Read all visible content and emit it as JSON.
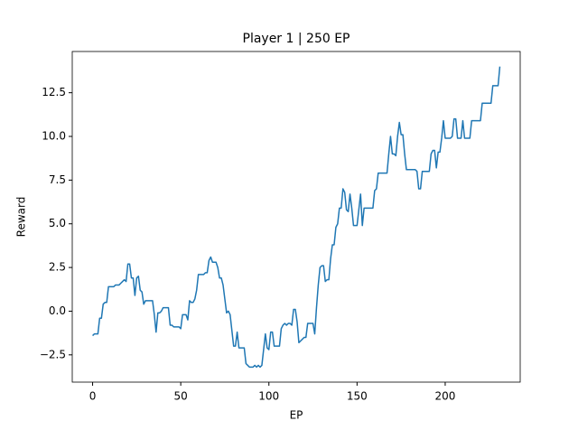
{
  "chart_data": {
    "type": "line",
    "title": "Player 1 | 250 EP",
    "xlabel": "EP",
    "ylabel": "Reward",
    "x": [
      0,
      1,
      2,
      3,
      4,
      5,
      6,
      7,
      8,
      9,
      10,
      11,
      12,
      13,
      14,
      15,
      16,
      17,
      18,
      19,
      20,
      21,
      22,
      23,
      24,
      25,
      26,
      27,
      28,
      29,
      30,
      31,
      32,
      33,
      34,
      35,
      36,
      37,
      38,
      39,
      40,
      41,
      42,
      43,
      44,
      45,
      46,
      47,
      48,
      49,
      50,
      51,
      52,
      53,
      54,
      55,
      56,
      57,
      58,
      59,
      60,
      61,
      62,
      63,
      64,
      65,
      66,
      67,
      68,
      69,
      70,
      71,
      72,
      73,
      74,
      75,
      76,
      77,
      78,
      79,
      80,
      81,
      82,
      83,
      84,
      85,
      86,
      87,
      88,
      89,
      90,
      91,
      92,
      93,
      94,
      95,
      96,
      97,
      98,
      99,
      100,
      101,
      102,
      103,
      104,
      105,
      106,
      107,
      108,
      109,
      110,
      111,
      112,
      113,
      114,
      115,
      116,
      117,
      118,
      119,
      120,
      121,
      122,
      123,
      124,
      125,
      126,
      127,
      128,
      129,
      130,
      131,
      132,
      133,
      134,
      135,
      136,
      137,
      138,
      139,
      140,
      141,
      142,
      143,
      144,
      145,
      146,
      147,
      148,
      149,
      150,
      151,
      152,
      153,
      154,
      155,
      156,
      157,
      158,
      159,
      160,
      161,
      162,
      163,
      164,
      165,
      166,
      167,
      168,
      169,
      170,
      171,
      172,
      173,
      174,
      175,
      176,
      177,
      178,
      179,
      180,
      181,
      182,
      183,
      184,
      185,
      186,
      187,
      188,
      189,
      190,
      191,
      192,
      193,
      194,
      195,
      196,
      197,
      198,
      199,
      200,
      201,
      202,
      203,
      204,
      205,
      206,
      207,
      208,
      209,
      210,
      211,
      212,
      213,
      214,
      215,
      216,
      217,
      218,
      219,
      220,
      221,
      222,
      223,
      224,
      225,
      226,
      227,
      228,
      229,
      230,
      231
    ],
    "series": [
      {
        "color": "#1f77b4",
        "values": [
          -1.4,
          -1.3,
          -1.3,
          -1.3,
          -0.4,
          -0.4,
          0.4,
          0.5,
          0.5,
          1.4,
          1.4,
          1.4,
          1.4,
          1.5,
          1.5,
          1.5,
          1.6,
          1.7,
          1.8,
          1.7,
          2.7,
          2.7,
          1.9,
          1.9,
          0.9,
          1.9,
          2.0,
          1.2,
          1.1,
          0.4,
          0.6,
          0.6,
          0.6,
          0.6,
          0.6,
          -0.2,
          -1.2,
          -0.1,
          -0.1,
          0.0,
          0.2,
          0.2,
          0.2,
          0.2,
          -0.8,
          -0.8,
          -0.9,
          -0.9,
          -0.9,
          -0.9,
          -1.0,
          -0.2,
          -0.2,
          -0.2,
          -0.5,
          0.6,
          0.5,
          0.5,
          0.7,
          1.2,
          2.1,
          2.1,
          2.1,
          2.1,
          2.2,
          2.2,
          2.9,
          3.1,
          2.8,
          2.8,
          2.8,
          2.5,
          1.9,
          1.9,
          1.5,
          0.7,
          -0.1,
          0.0,
          -0.2,
          -1.1,
          -2.0,
          -2.0,
          -1.2,
          -2.1,
          -2.1,
          -2.1,
          -2.1,
          -3.0,
          -3.1,
          -3.2,
          -3.2,
          -3.2,
          -3.1,
          -3.2,
          -3.1,
          -3.2,
          -3.1,
          -2.2,
          -1.3,
          -2.1,
          -2.2,
          -1.2,
          -1.2,
          -2.0,
          -2.0,
          -2.0,
          -2.0,
          -1.0,
          -0.8,
          -0.7,
          -0.8,
          -0.7,
          -0.7,
          -0.8,
          0.1,
          0.1,
          -0.6,
          -1.8,
          -1.7,
          -1.6,
          -1.5,
          -1.5,
          -0.7,
          -0.7,
          -0.7,
          -0.7,
          -1.3,
          0.2,
          1.5,
          2.5,
          2.6,
          2.6,
          1.7,
          1.8,
          1.8,
          3.0,
          3.8,
          3.8,
          4.8,
          5.0,
          5.9,
          5.9,
          7.0,
          6.8,
          5.8,
          5.7,
          6.7,
          5.9,
          4.9,
          4.9,
          4.9,
          5.8,
          6.7,
          4.9,
          5.9,
          5.9,
          5.9,
          5.9,
          5.9,
          5.9,
          6.9,
          7.0,
          7.9,
          7.9,
          7.9,
          7.9,
          7.9,
          7.9,
          9.0,
          10.0,
          9.0,
          9.0,
          8.9,
          10.0,
          10.8,
          10.1,
          10.1,
          9.0,
          8.1,
          8.1,
          8.1,
          8.1,
          8.1,
          8.1,
          8.0,
          7.0,
          7.0,
          8.0,
          8.0,
          8.0,
          8.0,
          8.0,
          9.0,
          9.2,
          9.2,
          8.2,
          9.1,
          9.1,
          9.9,
          10.9,
          9.9,
          9.9,
          9.9,
          9.9,
          10.0,
          11.0,
          11.0,
          9.9,
          9.9,
          9.9,
          10.9,
          9.9,
          9.9,
          9.9,
          9.9,
          10.9,
          10.9,
          10.9,
          10.9,
          10.9,
          10.9,
          11.9,
          11.9,
          11.9,
          11.9,
          11.9,
          11.9,
          12.9,
          12.9,
          12.9,
          12.9,
          14.0
        ]
      }
    ],
    "xlim": [
      -11.55,
      242.55
    ],
    "xticks": [
      0,
      50,
      100,
      150,
      200
    ],
    "ylim": [
      -4.06,
      14.86
    ],
    "yticks": [
      {
        "value": -2.5,
        "label": "−2.5"
      },
      {
        "value": 0,
        "label": "0.0"
      },
      2.5,
      {
        "value": 5,
        "label": "5.0"
      },
      7.5,
      {
        "value": 10,
        "label": "10.0"
      },
      12.5
    ],
    "grid": false
  }
}
